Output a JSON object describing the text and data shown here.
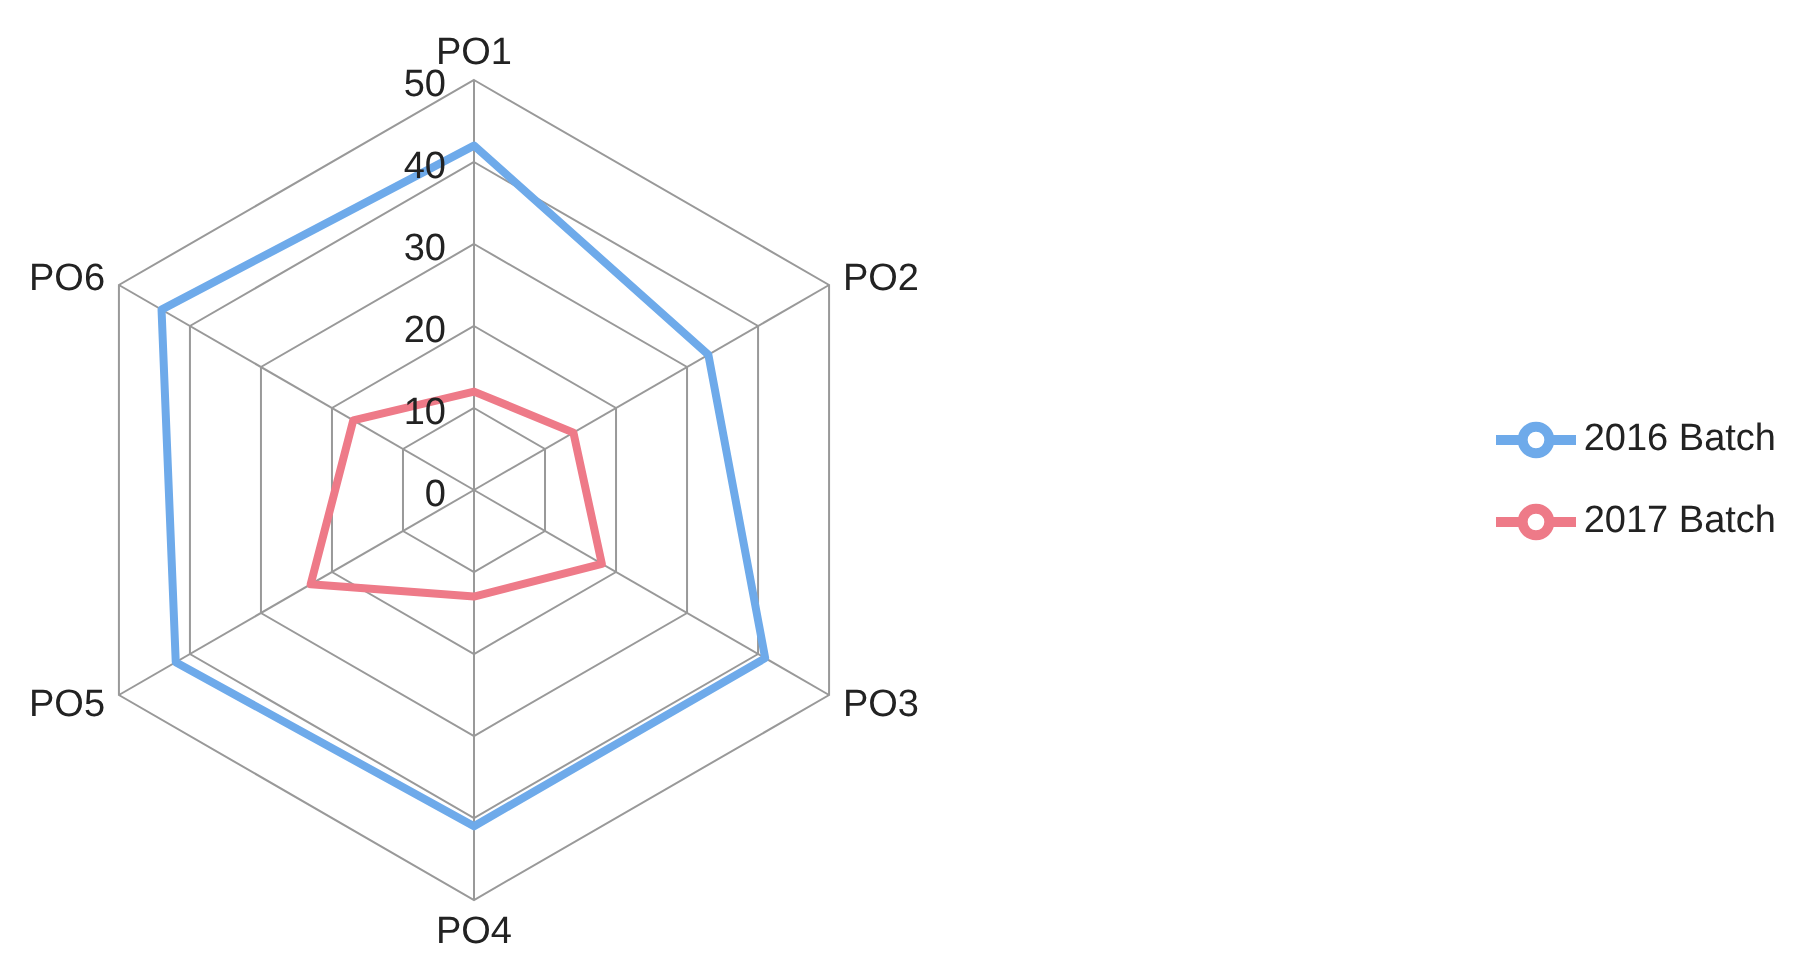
{
  "chart_data": {
    "type": "radar",
    "categories": [
      "PO1",
      "PO2",
      "PO3",
      "PO4",
      "PO5",
      "PO6"
    ],
    "series": [
      {
        "name": "2016 Batch",
        "color": "#6eaaea",
        "values": [
          42,
          33,
          41,
          41,
          42,
          44
        ]
      },
      {
        "name": "2017 Batch",
        "color": "#ee7a88",
        "values": [
          12,
          14,
          18,
          13,
          23,
          17
        ]
      }
    ],
    "ylim": [
      0,
      50
    ],
    "yticks": [
      0,
      10,
      20,
      30,
      40,
      50
    ],
    "grid": true,
    "legend": "right",
    "marker": "none"
  }
}
